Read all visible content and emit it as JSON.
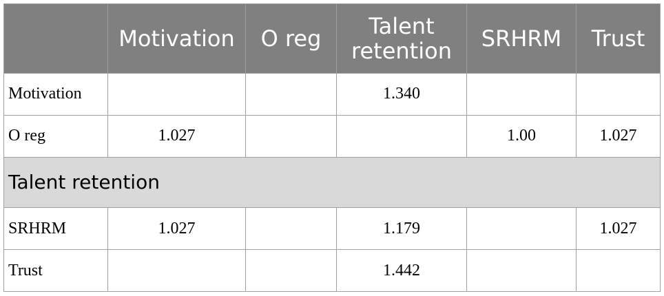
{
  "table": {
    "columns": [
      "Motivation",
      "O reg",
      "Talent retention",
      "SRHRM",
      "Trust"
    ],
    "rows": [
      {
        "label": "Motivation",
        "cells": [
          null,
          null,
          "1.340",
          null,
          null
        ]
      },
      {
        "label": "O reg",
        "cells": [
          "1.027",
          null,
          null,
          "1.00",
          "1.027"
        ]
      },
      {
        "section": "Talent retention"
      },
      {
        "label": "SRHRM",
        "cells": [
          "1.027",
          null,
          "1.179",
          null,
          "1.027"
        ]
      },
      {
        "label": "Trust",
        "cells": [
          null,
          null,
          "1.442",
          null,
          null
        ]
      }
    ]
  }
}
